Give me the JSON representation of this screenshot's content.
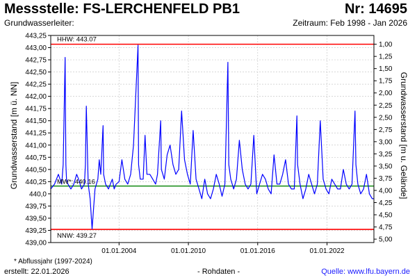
{
  "header": {
    "station_label": "Messstelle: FS-LERCHENFELD PB1",
    "number_label": "Nr: 14695",
    "aquifer_label": "Grundwasserleiter:",
    "period_label": "Zeitraum: Feb 1998 - Jan 2026"
  },
  "footer": {
    "note": "* Abflussjahr (1997-2024)",
    "created": "erstellt:  22.01.2026",
    "raw_data": "- Rohdaten -",
    "source": "Quelle: www.lfu.bayern.de"
  },
  "colors": {
    "series": "#0000ff",
    "hhw_line": "#ff0000",
    "nnw_line": "#ff0000",
    "mw_line": "#008000",
    "grid": "#c8c8c8"
  },
  "chart_data": {
    "type": "line",
    "title": "",
    "ylabel_left": "Grundwasserstand [m ü. NN]",
    "ylabel_right": "Grundwasserstand [m u. Gelände]",
    "ylim": [
      439.0,
      443.25
    ],
    "xlim": [
      "1998-02-01",
      "2026-01-22"
    ],
    "x_tick_labels": [
      "01.01.2004",
      "01.01.2010",
      "01.01.2016",
      "01.01.2022"
    ],
    "x_ticks": [
      "2004-01-01",
      "2010-01-01",
      "2016-01-01",
      "2022-01-01"
    ],
    "y_ticks_left": [
      "439,00",
      "439,25",
      "439,50",
      "439,75",
      "440,0",
      "440,25",
      "440,50",
      "440,75",
      "441,00",
      "441,25",
      "441,50",
      "441,75",
      "442,00",
      "442,25",
      "442,50",
      "442,75",
      "443,00",
      "443,25"
    ],
    "y_ticks_right": [
      "5,00",
      "4,75",
      "4,50",
      "4,25",
      "4,00",
      "3,75",
      "3,50",
      "3,25",
      "3,00",
      "2,75",
      "2,50",
      "2,25",
      "2,00",
      "1,75",
      "1,50",
      "1,25",
      "1,00"
    ],
    "reference_lines": [
      {
        "label": "HHW: 443.07",
        "value": 443.07
      },
      {
        "label": "MW*: 440.16",
        "value": 440.16
      },
      {
        "label": "NNW: 439.27",
        "value": 439.27
      }
    ],
    "grid": true,
    "series": [
      {
        "x": [
          "1998-02-01",
          "1998-06-01",
          "1998-10-01",
          "1999-01-15",
          "1999-03-01",
          "1999-05-01",
          "1999-05-25",
          "1999-06-15",
          "1999-08-01",
          "1999-11-01",
          "2000-02-01",
          "2000-05-01",
          "2000-07-01",
          "2000-10-01",
          "2001-01-01",
          "2001-02-01",
          "2001-03-01",
          "2001-05-01",
          "2001-07-01",
          "2001-09-01",
          "2001-12-01",
          "2002-03-01",
          "2002-04-15",
          "2002-06-01",
          "2002-08-13",
          "2002-09-01",
          "2002-11-01",
          "2003-02-01",
          "2003-04-01",
          "2003-06-01",
          "2003-08-01",
          "2003-10-01",
          "2004-01-01",
          "2004-04-01",
          "2004-07-01",
          "2004-10-01",
          "2005-01-01",
          "2005-04-01",
          "2005-08-23",
          "2005-09-10",
          "2005-11-01",
          "2006-02-01",
          "2006-04-01",
          "2006-06-01",
          "2006-09-01",
          "2006-12-01",
          "2007-03-01",
          "2007-05-01",
          "2007-08-10",
          "2007-09-01",
          "2007-12-01",
          "2008-03-01",
          "2008-06-01",
          "2008-09-01",
          "2008-12-01",
          "2009-03-01",
          "2009-06-01",
          "2009-09-01",
          "2009-12-01",
          "2010-03-01",
          "2010-06-01",
          "2010-09-01",
          "2010-12-01",
          "2011-03-01",
          "2011-06-01",
          "2011-09-01",
          "2011-12-01",
          "2012-03-01",
          "2012-06-01",
          "2012-09-01",
          "2012-12-01",
          "2013-03-01",
          "2013-06-03",
          "2013-07-01",
          "2013-09-01",
          "2013-12-01",
          "2014-03-01",
          "2014-06-01",
          "2014-09-01",
          "2014-12-01",
          "2015-03-01",
          "2015-06-01",
          "2015-09-01",
          "2015-12-01",
          "2016-03-01",
          "2016-06-01",
          "2016-09-01",
          "2016-12-01",
          "2017-03-01",
          "2017-06-01",
          "2017-09-01",
          "2017-12-01",
          "2018-03-01",
          "2018-06-01",
          "2018-09-01",
          "2018-12-01",
          "2019-03-01",
          "2019-05-25",
          "2019-06-15",
          "2019-09-01",
          "2019-12-01",
          "2020-03-01",
          "2020-06-01",
          "2020-09-01",
          "2020-12-01",
          "2021-03-01",
          "2021-06-01",
          "2021-09-01",
          "2021-12-01",
          "2022-03-01",
          "2022-06-01",
          "2022-09-01",
          "2022-12-01",
          "2023-03-01",
          "2023-06-01",
          "2023-09-01",
          "2023-12-01",
          "2024-03-01",
          "2024-06-03",
          "2024-07-01",
          "2024-09-01",
          "2024-12-01",
          "2025-03-01",
          "2025-06-01",
          "2025-09-01",
          "2025-12-01",
          "2026-01-22"
        ],
        "values": [
          440.1,
          440.2,
          440.4,
          440.2,
          440.6,
          442.8,
          440.6,
          440.3,
          440.2,
          440.1,
          440.2,
          440.4,
          440.3,
          440.1,
          440.2,
          440.6,
          441.8,
          440.2,
          439.9,
          439.28,
          440.1,
          440.3,
          440.7,
          440.4,
          441.4,
          440.4,
          440.2,
          440.1,
          440.2,
          440.3,
          440.1,
          440.2,
          440.25,
          440.7,
          440.3,
          440.2,
          440.4,
          441.0,
          443.05,
          440.6,
          440.3,
          440.3,
          441.2,
          440.4,
          440.4,
          440.3,
          440.2,
          440.4,
          441.5,
          440.5,
          440.3,
          440.8,
          441.0,
          440.6,
          440.4,
          440.5,
          441.7,
          440.7,
          440.4,
          440.2,
          441.3,
          440.3,
          440.1,
          439.9,
          440.3,
          440.0,
          439.9,
          440.1,
          440.4,
          440.2,
          439.95,
          440.2,
          442.7,
          440.6,
          440.3,
          440.1,
          440.3,
          441.1,
          440.5,
          440.2,
          440.1,
          440.2,
          441.2,
          440.0,
          440.2,
          440.4,
          440.3,
          440.1,
          440.0,
          440.8,
          440.2,
          440.2,
          440.4,
          440.7,
          440.2,
          440.1,
          440.1,
          441.6,
          440.6,
          440.2,
          439.9,
          440.1,
          440.4,
          440.2,
          440.0,
          440.2,
          441.5,
          440.3,
          440.1,
          440.0,
          440.3,
          440.2,
          440.1,
          440.1,
          440.5,
          440.2,
          440.1,
          440.2,
          441.7,
          440.6,
          440.2,
          440.0,
          440.1,
          440.4,
          440.0,
          439.9,
          439.9
        ]
      }
    ]
  }
}
